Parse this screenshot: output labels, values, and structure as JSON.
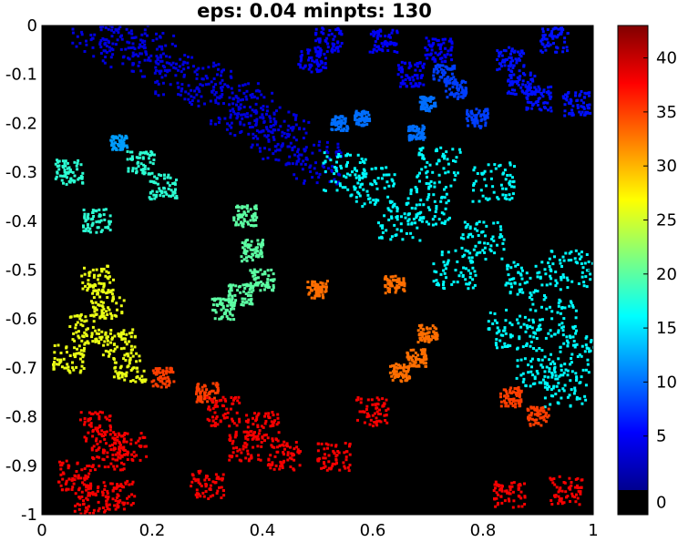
{
  "chart_data": {
    "type": "heatmap",
    "title": "eps: 0.04 minpts: 130",
    "xlabel": "",
    "ylabel": "",
    "xlim": [
      0,
      1
    ],
    "ylim": [
      -1,
      0
    ],
    "x_ticks": [
      "0",
      "0.2",
      "0.4",
      "0.6",
      "0.8",
      "1"
    ],
    "x_tick_values": [
      0,
      0.2,
      0.4,
      0.6,
      0.8,
      1
    ],
    "y_ticks": [
      "0",
      "-0.1",
      "-0.2",
      "-0.3",
      "-0.4",
      "-0.5",
      "-0.6",
      "-0.7",
      "-0.8",
      "-0.9",
      "-1"
    ],
    "y_tick_values": [
      0,
      -0.1,
      -0.2,
      -0.3,
      -0.4,
      -0.5,
      -0.6,
      -0.7,
      -0.8,
      -0.9,
      -1
    ],
    "colormap": "jet",
    "background_color": "#000000",
    "colorbar": {
      "range": [
        0,
        43
      ],
      "noise_value": 0,
      "noise_color": "#000000",
      "ticks": [
        "0",
        "5",
        "10",
        "15",
        "20",
        "25",
        "30",
        "35",
        "40"
      ],
      "tick_values": [
        0,
        5,
        10,
        15,
        20,
        25,
        30,
        35,
        40
      ]
    },
    "clusters": [
      {
        "label": 4,
        "points": [
          [
            0.1,
            -0.02
          ],
          [
            0.2,
            -0.06
          ],
          [
            0.3,
            -0.12
          ],
          [
            0.38,
            -0.18
          ],
          [
            0.44,
            -0.24
          ],
          [
            0.5,
            -0.28
          ],
          [
            0.25,
            -0.1
          ],
          [
            0.35,
            -0.16
          ],
          [
            0.15,
            -0.04
          ],
          [
            0.42,
            -0.21
          ]
        ],
        "spread": 0.045
      },
      {
        "label": 5,
        "points": [
          [
            0.52,
            -0.03
          ],
          [
            0.49,
            -0.07
          ],
          [
            0.62,
            -0.03
          ],
          [
            0.67,
            -0.1
          ],
          [
            0.72,
            -0.05
          ]
        ],
        "spread": 0.025
      },
      {
        "label": 6,
        "points": [
          [
            0.85,
            -0.07
          ],
          [
            0.87,
            -0.12
          ],
          [
            0.93,
            -0.03
          ],
          [
            0.97,
            -0.16
          ],
          [
            0.9,
            -0.15
          ]
        ],
        "spread": 0.025
      },
      {
        "label": 8,
        "points": [
          [
            0.75,
            -0.13
          ],
          [
            0.79,
            -0.19
          ],
          [
            0.73,
            -0.1
          ]
        ],
        "spread": 0.02
      },
      {
        "label": 10,
        "points": [
          [
            0.54,
            -0.2
          ],
          [
            0.58,
            -0.19
          ],
          [
            0.68,
            -0.22
          ],
          [
            0.7,
            -0.16
          ]
        ],
        "spread": 0.015
      },
      {
        "label": 12,
        "points": [
          [
            0.14,
            -0.24
          ]
        ],
        "spread": 0.015
      },
      {
        "label": 16,
        "points": [
          [
            0.6,
            -0.33
          ],
          [
            0.7,
            -0.37
          ],
          [
            0.8,
            -0.44
          ],
          [
            0.88,
            -0.52
          ],
          [
            0.93,
            -0.6
          ],
          [
            0.98,
            -0.67
          ],
          [
            0.75,
            -0.5
          ],
          [
            0.85,
            -0.62
          ],
          [
            0.95,
            -0.74
          ],
          [
            0.65,
            -0.4
          ],
          [
            0.82,
            -0.32
          ],
          [
            0.72,
            -0.29
          ],
          [
            0.55,
            -0.3
          ],
          [
            0.9,
            -0.7
          ],
          [
            0.96,
            -0.5
          ]
        ],
        "spread": 0.04
      },
      {
        "label": 18,
        "points": [
          [
            0.18,
            -0.28
          ],
          [
            0.22,
            -0.33
          ],
          [
            0.05,
            -0.3
          ],
          [
            0.1,
            -0.4
          ]
        ],
        "spread": 0.025
      },
      {
        "label": 20,
        "points": [
          [
            0.37,
            -0.39
          ],
          [
            0.38,
            -0.46
          ],
          [
            0.36,
            -0.55
          ],
          [
            0.4,
            -0.52
          ],
          [
            0.33,
            -0.58
          ]
        ],
        "spread": 0.022
      },
      {
        "label": 26,
        "points": [
          [
            0.08,
            -0.62
          ],
          [
            0.14,
            -0.65
          ],
          [
            0.12,
            -0.57
          ],
          [
            0.05,
            -0.68
          ],
          [
            0.16,
            -0.7
          ],
          [
            0.1,
            -0.52
          ]
        ],
        "spread": 0.03
      },
      {
        "label": 33,
        "points": [
          [
            0.68,
            -0.68
          ],
          [
            0.7,
            -0.63
          ],
          [
            0.65,
            -0.71
          ],
          [
            0.5,
            -0.54
          ],
          [
            0.64,
            -0.53
          ]
        ],
        "spread": 0.018
      },
      {
        "label": 35,
        "points": [
          [
            0.22,
            -0.72
          ],
          [
            0.85,
            -0.76
          ],
          [
            0.3,
            -0.75
          ],
          [
            0.9,
            -0.8
          ]
        ],
        "spread": 0.02
      },
      {
        "label": 38,
        "points": [
          [
            0.1,
            -0.82
          ],
          [
            0.12,
            -0.88
          ],
          [
            0.06,
            -0.92
          ],
          [
            0.16,
            -0.86
          ],
          [
            0.09,
            -0.97
          ],
          [
            0.14,
            -0.96
          ],
          [
            0.33,
            -0.79
          ],
          [
            0.4,
            -0.82
          ],
          [
            0.44,
            -0.88
          ],
          [
            0.37,
            -0.86
          ],
          [
            0.6,
            -0.79
          ],
          [
            0.53,
            -0.88
          ],
          [
            0.95,
            -0.95
          ],
          [
            0.85,
            -0.96
          ],
          [
            0.3,
            -0.94
          ]
        ],
        "spread": 0.03
      }
    ]
  }
}
